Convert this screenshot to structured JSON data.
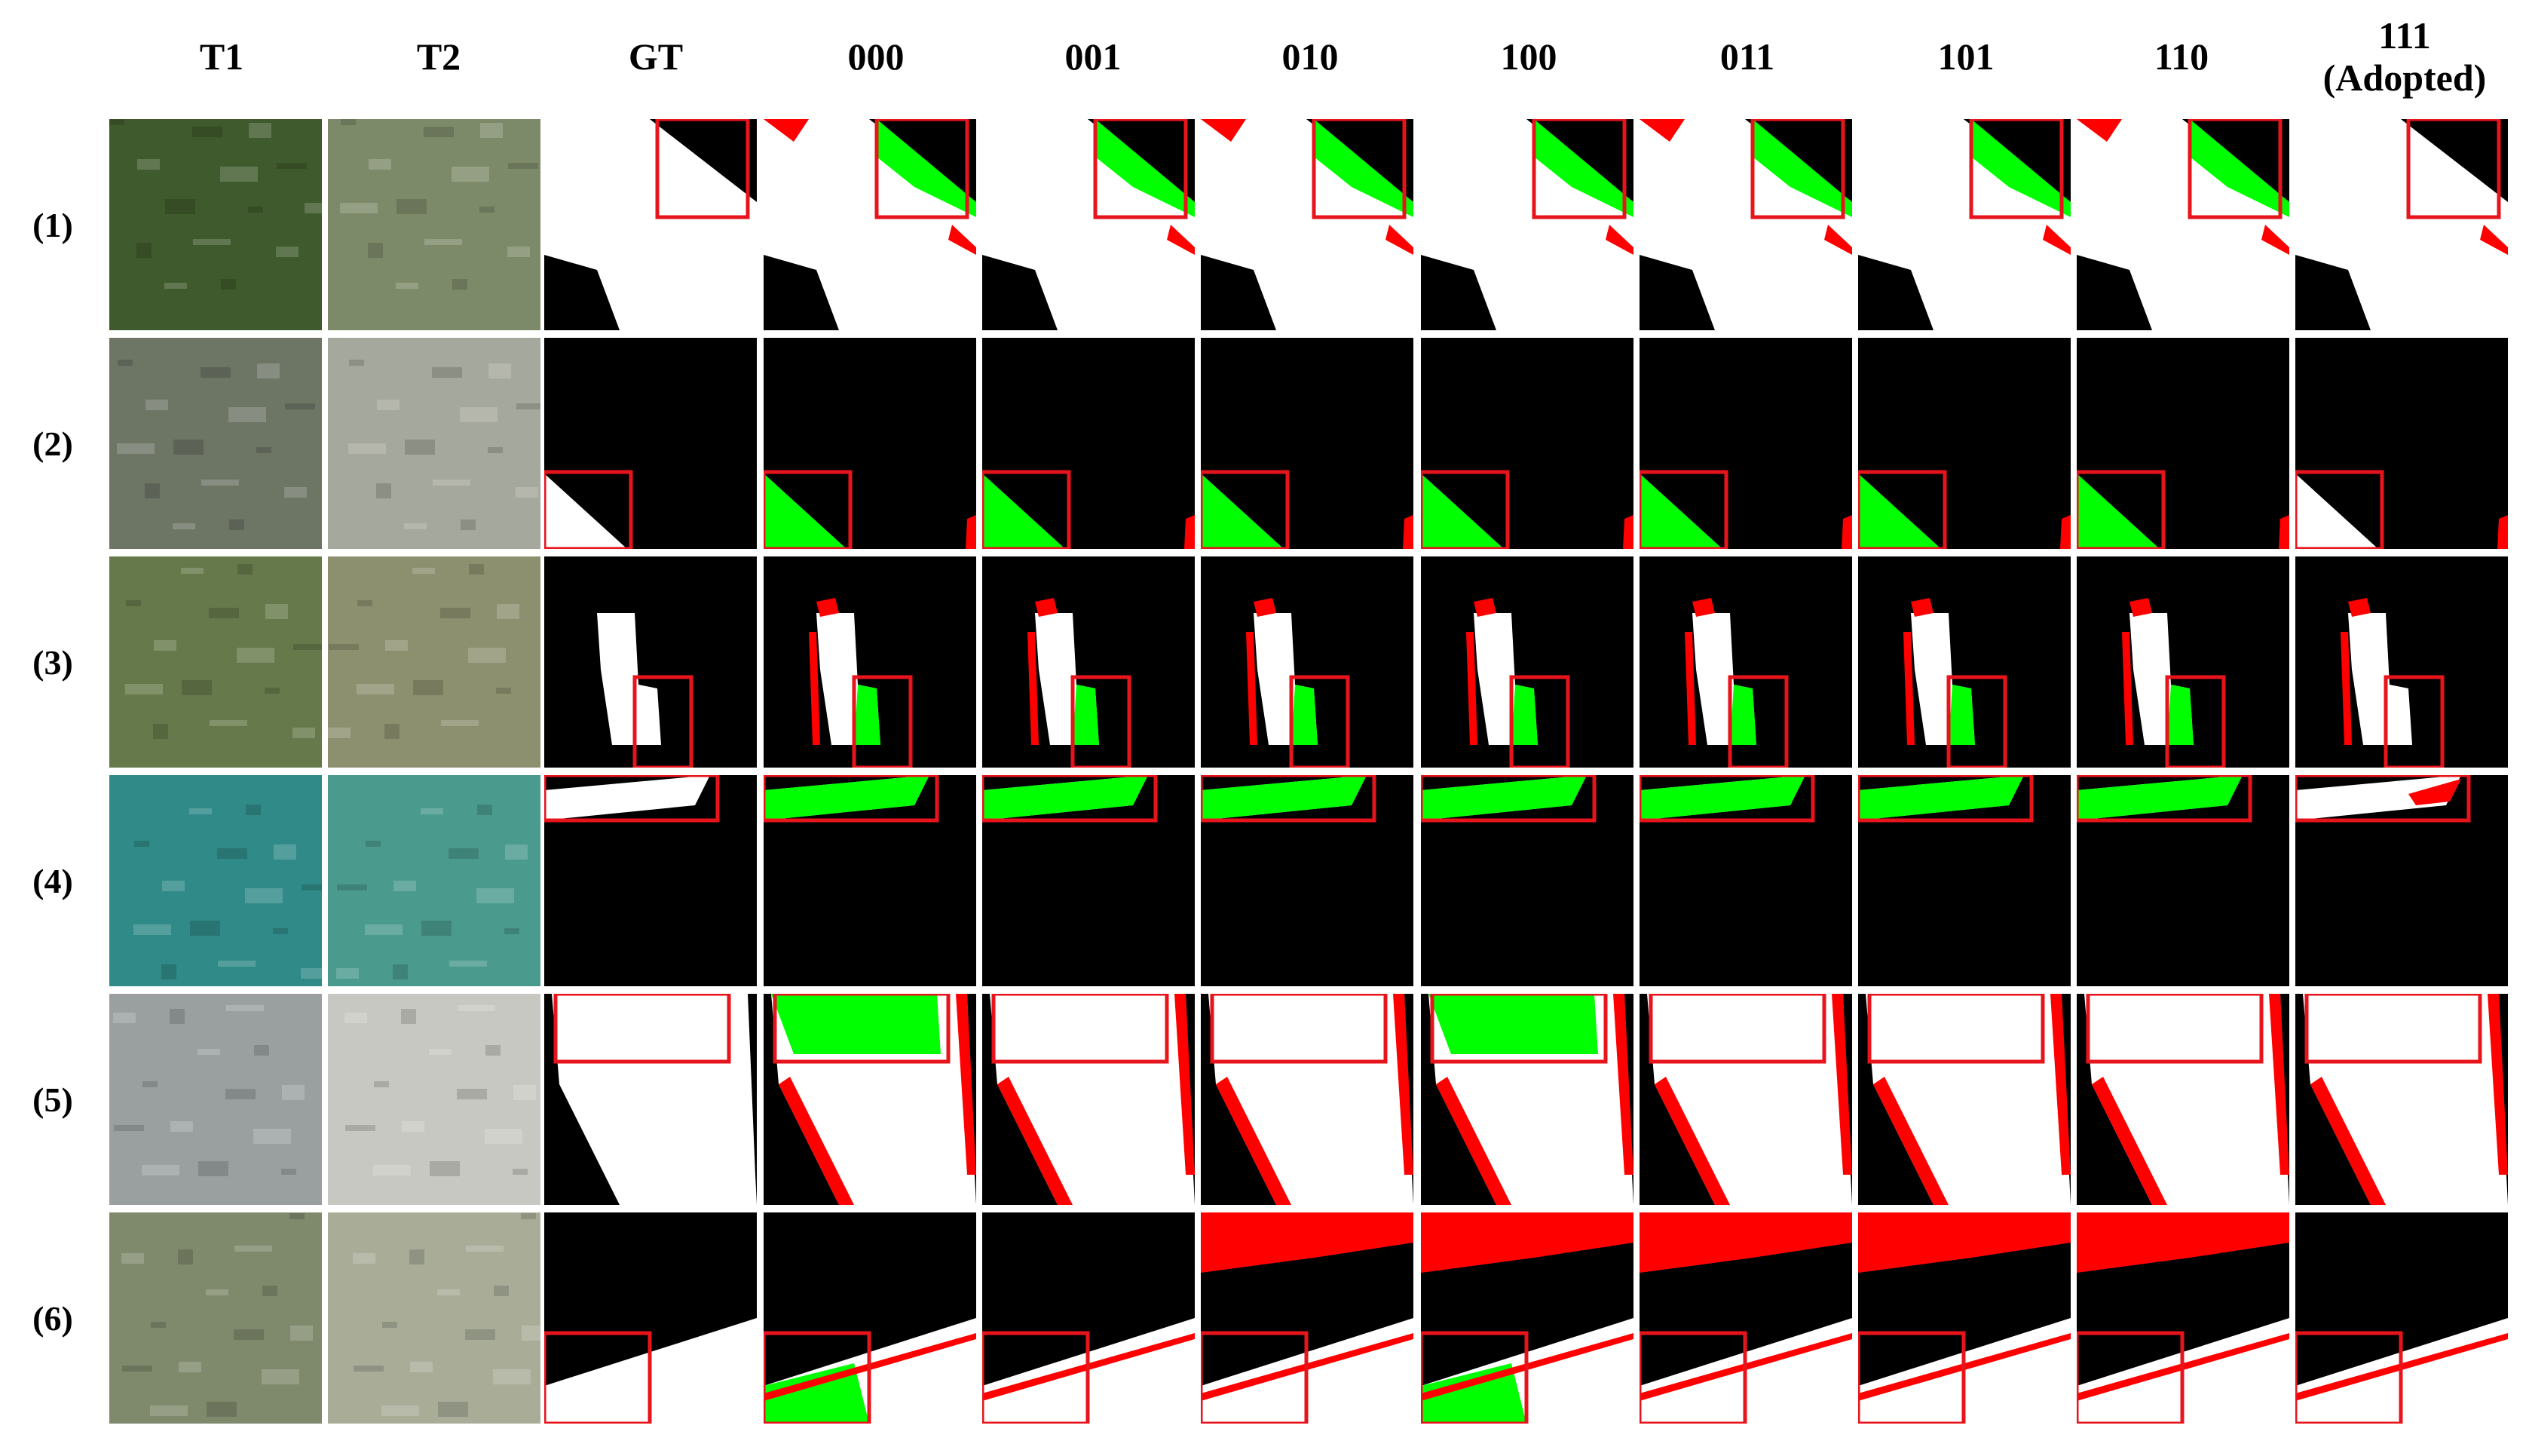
{
  "columns": [
    "T1",
    "T2",
    "GT",
    "000",
    "001",
    "010",
    "100",
    "011",
    "101",
    "110",
    "111\n(Adopted)"
  ],
  "column_labels": [
    {
      "line1": "T1",
      "line2": ""
    },
    {
      "line1": "T2",
      "line2": ""
    },
    {
      "line1": "GT",
      "line2": ""
    },
    {
      "line1": "000",
      "line2": ""
    },
    {
      "line1": "001",
      "line2": ""
    },
    {
      "line1": "010",
      "line2": ""
    },
    {
      "line1": "100",
      "line2": ""
    },
    {
      "line1": "011",
      "line2": ""
    },
    {
      "line1": "101",
      "line2": ""
    },
    {
      "line1": "110",
      "line2": ""
    },
    {
      "line1": "111",
      "line2": "(Adopted)"
    }
  ],
  "rows": [
    "(1)",
    "(2)",
    "(3)",
    "(4)",
    "(5)",
    "(6)"
  ],
  "colors": {
    "changed": "#ffffff",
    "unchanged": "#000000",
    "false_positive": "#ff0000",
    "false_negative": "#00ff00",
    "highlight_box": "#e8141c"
  },
  "scene_palettes": [
    {
      "a": "#3f5a2c",
      "b": "#7d8a6a"
    },
    {
      "a": "#6d7565",
      "b": "#a5a89c"
    },
    {
      "a": "#66794a",
      "b": "#8d906f"
    },
    {
      "a": "#2f8a88",
      "b": "#4a9a8e"
    },
    {
      "a": "#9aa0a0",
      "b": "#c8c8c2"
    },
    {
      "a": "#7f8a6c",
      "b": "#a9ad98"
    }
  ]
}
